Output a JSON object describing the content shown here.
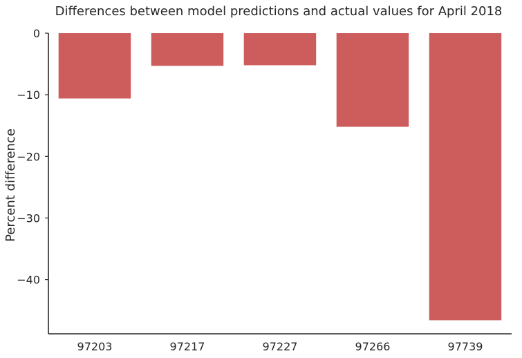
{
  "chart_data": {
    "type": "bar",
    "title": "Differences between model predictions and actual values for April 2018",
    "xlabel": "",
    "ylabel": "Percent difference",
    "categories": [
      "97203",
      "97217",
      "97227",
      "97266",
      "97739"
    ],
    "values": [
      -10.6,
      -5.3,
      -5.2,
      -15.2,
      -46.6
    ],
    "ylim": [
      -48.8,
      0
    ],
    "yticks": [
      0,
      -10,
      -20,
      -30,
      -40
    ],
    "ytick_labels": [
      "0",
      "−10",
      "−20",
      "−30",
      "−40"
    ],
    "grid": false,
    "bar_color": "#cd5c5c"
  }
}
